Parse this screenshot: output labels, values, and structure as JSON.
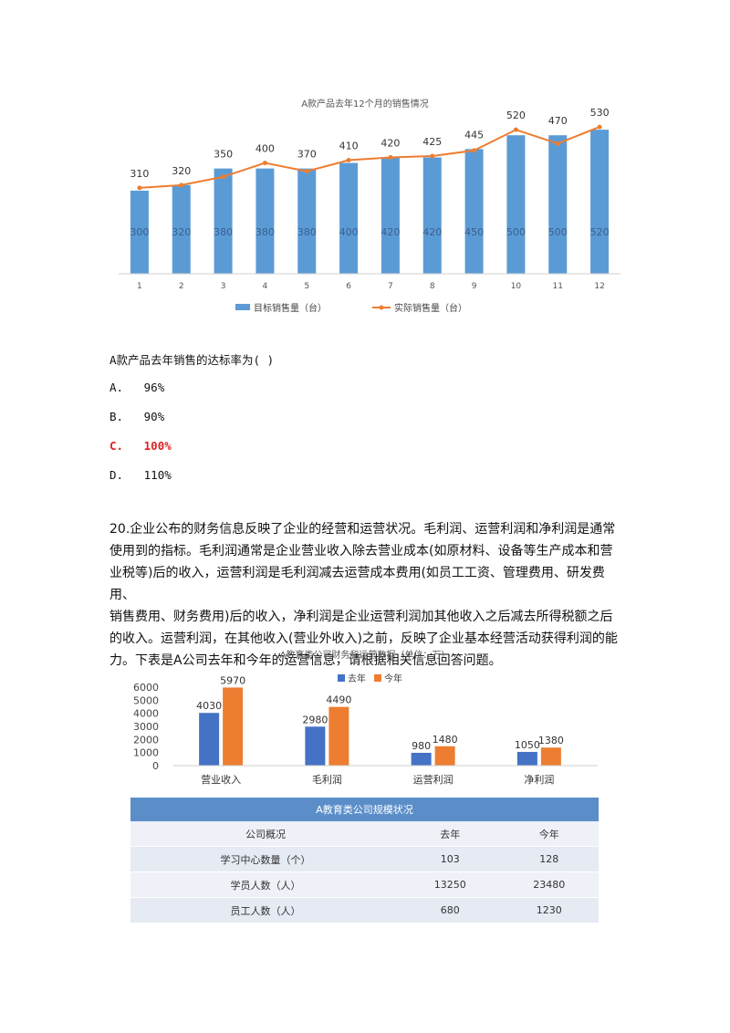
{
  "chart_data": [
    {
      "type": "bar",
      "title": "A款产品去年12个月的销售情况",
      "categories": [
        "1",
        "2",
        "3",
        "4",
        "5",
        "6",
        "7",
        "8",
        "9",
        "10",
        "11",
        "12"
      ],
      "series": [
        {
          "name": "目标销售量（台）",
          "kind": "bar",
          "values": [
            300,
            320,
            380,
            380,
            380,
            400,
            420,
            420,
            450,
            500,
            500,
            520
          ]
        },
        {
          "name": "实际销售量（台）",
          "kind": "line",
          "values": [
            310,
            320,
            350,
            400,
            370,
            410,
            420,
            425,
            445,
            520,
            470,
            530
          ]
        }
      ],
      "ylim": [
        0,
        560
      ],
      "legend": "bottom",
      "colors": {
        "bar": "#5b9bd5",
        "line": "#ed7d31"
      }
    },
    {
      "type": "bar",
      "title": "A教育类公司财务和运营数据（单位：万）",
      "categories": [
        "营业收入",
        "毛利润",
        "运营利润",
        "净利润"
      ],
      "series": [
        {
          "name": "去年",
          "values": [
            4030,
            2980,
            980,
            1050
          ]
        },
        {
          "name": "今年",
          "values": [
            5970,
            4490,
            1480,
            1380
          ]
        }
      ],
      "yticks": [
        0,
        1000,
        2000,
        3000,
        4000,
        5000,
        6000
      ],
      "ylim": [
        0,
        6000
      ],
      "legend": "top",
      "colors": {
        "去年": "#4472c4",
        "今年": "#ed7d31"
      }
    }
  ],
  "question19": {
    "stem": "A款产品去年销售的达标率为(    )",
    "options": [
      {
        "label": "A.",
        "text": "96%"
      },
      {
        "label": "B.",
        "text": "90%"
      },
      {
        "label": "C.",
        "text": "100%"
      },
      {
        "label": "D.",
        "text": "110%"
      }
    ]
  },
  "question20": {
    "lines": [
      "20.企业公布的财务信息反映了企业的经营和运营状况。毛利润、运营利润和净利润是通常",
      "使用到的指标。毛利润通常是企业营业收入除去营业成本(如原材料、设备等生产成本和营",
      "业税等)后的收入，运营利润是毛利润减去运营成本费用(如员工工资、管理费用、研发费用、",
      "销售费用、财务费用)后的收入，净利润是企业运营利润加其他收入之后减去所得税额之后",
      "的收入。运营利润，在其他收入(营业外收入)之前，反映了企业基本经营活动获得利润的能",
      "力。下表是A公司去年和今年的运营信息，请根据相关信息回答问题。"
    ]
  },
  "scale_table": {
    "caption": "A教育类公司规模状况",
    "headers": [
      "公司概况",
      "去年",
      "今年"
    ],
    "rows": [
      [
        "学习中心数量（个）",
        "103",
        "128"
      ],
      [
        "学员人数（人）",
        "13250",
        "23480"
      ],
      [
        "员工人数（人）",
        "680",
        "1230"
      ]
    ]
  }
}
